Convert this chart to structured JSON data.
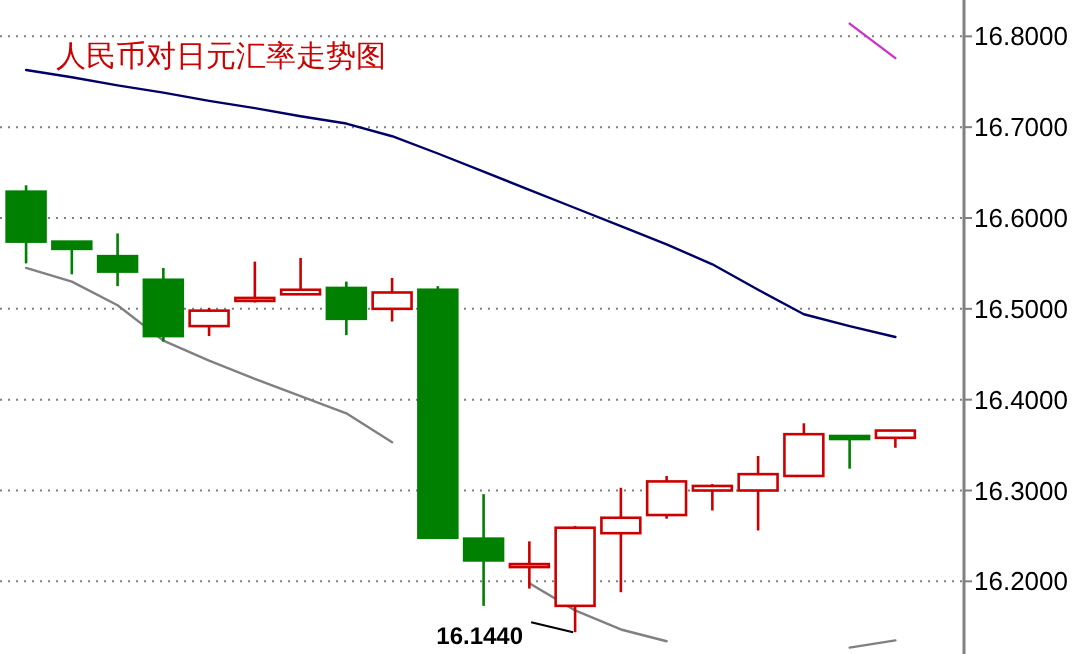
{
  "chart_data": {
    "type": "candlestick",
    "title": "人民币对日元汇率走势图",
    "categories": [
      null,
      null,
      null,
      null,
      null,
      null,
      null,
      null,
      null,
      null,
      null,
      null,
      null,
      null,
      null,
      null,
      null,
      null,
      null,
      null
    ],
    "series": [
      {
        "ohlc": [
          [
            16.629,
            16.636,
            16.55,
            16.574
          ],
          [
            16.574,
            16.574,
            16.538,
            16.566
          ],
          [
            16.558,
            16.583,
            16.525,
            16.541
          ],
          [
            16.532,
            16.545,
            16.464,
            16.47
          ],
          [
            16.481,
            16.501,
            16.47,
            16.498
          ],
          [
            16.509,
            16.552,
            16.507,
            16.512
          ],
          [
            16.516,
            16.556,
            16.516,
            16.521
          ],
          [
            16.523,
            16.53,
            16.471,
            16.489
          ],
          [
            16.5,
            16.534,
            16.486,
            16.518
          ],
          [
            16.521,
            16.525,
            16.248,
            16.248
          ],
          [
            16.247,
            16.296,
            16.173,
            16.223
          ],
          [
            16.216,
            16.244,
            16.192,
            16.219
          ],
          [
            16.173,
            16.261,
            16.144,
            16.259
          ],
          [
            16.253,
            16.303,
            16.188,
            16.27
          ],
          [
            16.273,
            16.316,
            16.269,
            16.31
          ],
          [
            16.3,
            16.307,
            16.278,
            16.305
          ],
          [
            16.3,
            16.338,
            16.256,
            16.318
          ],
          [
            16.316,
            16.374,
            16.316,
            16.362
          ],
          [
            16.36,
            16.36,
            16.324,
            16.357
          ],
          [
            16.358,
            16.366,
            16.347,
            16.366
          ]
        ],
        "colors": [
          "#008000",
          "#008000",
          "#008000",
          "#008000",
          "#cc0000",
          "#cc0000",
          "#cc0000",
          "#008000",
          "#cc0000",
          "#008000",
          "#008000",
          "#cc0000",
          "#cc0000",
          "#cc0000",
          "#cc0000",
          "#cc0000",
          "#cc0000",
          "#cc0000",
          "#008000",
          "#cc0000"
        ]
      },
      {
        "type": "line",
        "color": "#000066",
        "values": [
          16.763,
          16.755,
          16.746,
          16.738,
          16.729,
          16.721,
          16.712,
          16.704,
          16.69,
          16.671,
          16.651,
          16.631,
          16.611,
          16.591,
          16.571,
          16.549,
          16.521,
          16.494,
          16.481,
          16.469
        ]
      },
      {
        "type": "line",
        "color": "#808080",
        "values": [
          16.545,
          16.53,
          16.504,
          16.465,
          16.443,
          16.423,
          16.404,
          16.385,
          16.353,
          null,
          null,
          16.198,
          16.168,
          16.147,
          16.134,
          null,
          null,
          null,
          16.127,
          16.135
        ]
      },
      {
        "type": "line",
        "color": "#cc33cc",
        "values": [
          null,
          null,
          null,
          null,
          null,
          null,
          null,
          null,
          null,
          null,
          null,
          null,
          null,
          null,
          null,
          null,
          null,
          null,
          16.814,
          16.776
        ]
      }
    ],
    "ylim": [
      16.12,
      16.84
    ],
    "yticks": [
      {
        "value": 16.2,
        "label": "16.2000"
      },
      {
        "value": 16.3,
        "label": "16.3000"
      },
      {
        "value": 16.4,
        "label": "16.4000"
      },
      {
        "value": 16.5,
        "label": "16.5000"
      },
      {
        "value": 16.6,
        "label": "16.6000"
      },
      {
        "value": 16.7,
        "label": "16.7000"
      },
      {
        "value": 16.8,
        "label": "16.8000"
      }
    ],
    "grid": "y",
    "tick_labels": "y",
    "annotations": [
      "16.1440"
    ]
  }
}
